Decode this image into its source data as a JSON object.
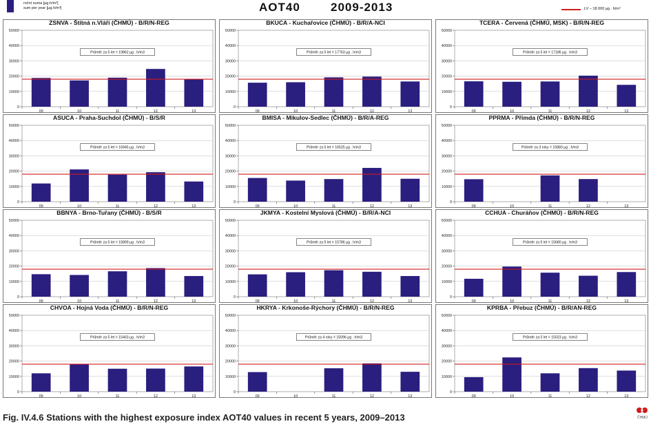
{
  "header": {
    "legend_line1": "roční suma [µg.h/m³]",
    "legend_line2": "sum per year [µg.h/m³]",
    "title": "AOT40",
    "period": "2009-2013",
    "lv_label": "LV – 18 000 µg . h/m³"
  },
  "caption": "Fig. IV.4.6  Stations with the highest exposure index AOT40 values in recent 5 years, 2009–2013",
  "logo_text": "ČHMÚ",
  "colors": {
    "bar": "#2a1e7f",
    "limit_line": "#d01c1c",
    "grid": "#bdbdbd"
  },
  "chart_data": [
    {
      "type": "bar",
      "title": "ZSNVA - Štítná n.Vláří (ČHMÚ) - B/R/N-REG",
      "categories": [
        "09",
        "10",
        "11",
        "12",
        "13"
      ],
      "values": [
        18800,
        17200,
        19000,
        24700,
        17900
      ],
      "ylim": [
        0,
        50000
      ],
      "yticks": [
        "0",
        "10000",
        "20000",
        "30000",
        "40000",
        "50000"
      ],
      "limit": 18000,
      "note": "Průměr za 5 let = 19862 µg . h/m3"
    },
    {
      "type": "bar",
      "title": "BKUCA - Kuchařovice (ČHMÚ) - B/R/A-NCI",
      "categories": [
        "09",
        "10",
        "11",
        "12",
        "13"
      ],
      "values": [
        15700,
        16000,
        19200,
        19700,
        16500
      ],
      "ylim": [
        0,
        50000
      ],
      "yticks": [
        "0",
        "10000",
        "20000",
        "30000",
        "40000",
        "50000"
      ],
      "limit": 18000,
      "note": "Průměr za 5 let = 17763 µg . h/m3"
    },
    {
      "type": "bar",
      "title": "TCERA - Červená (ČHMÚ, MSK) - B/R/N-REG",
      "categories": [
        "09",
        "10",
        "11",
        "12",
        "13"
      ],
      "values": [
        16600,
        16300,
        16500,
        20300,
        14300
      ],
      "ylim": [
        0,
        50000
      ],
      "yticks": [
        "0",
        "10000",
        "20000",
        "30000",
        "40000",
        "50000"
      ],
      "limit": 18000,
      "note": "Průměr za 5 let = 17186 µg . h/m3"
    },
    {
      "type": "bar",
      "title": "ASUCA - Praha-Suchdol (ČHMÚ) - B/S/R",
      "categories": [
        "09",
        "10",
        "11",
        "12",
        "13"
      ],
      "values": [
        11900,
        21100,
        17700,
        19300,
        13200
      ],
      "ylim": [
        0,
        50000
      ],
      "yticks": [
        "0",
        "10000",
        "20000",
        "30000",
        "40000",
        "50000"
      ],
      "limit": 18000,
      "note": "Průměr za 5 let = 16945 µg . h/m3"
    },
    {
      "type": "bar",
      "title": "BMISA - Mikulov-Sedlec (ČHMÚ) - B/R/A-REG",
      "categories": [
        "09",
        "10",
        "11",
        "12",
        "13"
      ],
      "values": [
        15500,
        13800,
        14800,
        22100,
        15000
      ],
      "ylim": [
        0,
        50000
      ],
      "yticks": [
        "0",
        "10000",
        "20000",
        "30000",
        "40000",
        "50000"
      ],
      "limit": 18000,
      "note": "Průměr za 5 let = 16525 µg . h/m3"
    },
    {
      "type": "bar",
      "title": "PPRMA - Přimda (ČHMÚ) - B/R/N-REG",
      "categories": [
        "09",
        "10",
        "11",
        "12",
        "13"
      ],
      "values": [
        14700,
        null,
        17200,
        14800,
        null
      ],
      "ylim": [
        0,
        50000
      ],
      "yticks": [
        "0",
        "10000",
        "20000",
        "30000",
        "40000",
        "50000"
      ],
      "limit": 18000,
      "note": "Průměr za 3 roky = 15883 µg . h/m3"
    },
    {
      "type": "bar",
      "title": "BBNYA - Brno-Tuřany (ČHMÚ) - B/S/R",
      "categories": [
        "09",
        "10",
        "11",
        "12",
        "13"
      ],
      "values": [
        14700,
        14200,
        16600,
        18700,
        13500
      ],
      "ylim": [
        0,
        50000
      ],
      "yticks": [
        "0",
        "10000",
        "20000",
        "30000",
        "40000",
        "50000"
      ],
      "limit": 18000,
      "note": "Průměr za 5 let = 15809 µg . h/m3"
    },
    {
      "type": "bar",
      "title": "JKMYA - Kostelní Myslová (ČHMÚ) - B/R/A-NCI",
      "categories": [
        "09",
        "10",
        "11",
        "12",
        "13"
      ],
      "values": [
        14600,
        16000,
        17300,
        16300,
        13500
      ],
      "ylim": [
        0,
        50000
      ],
      "yticks": [
        "0",
        "10000",
        "20000",
        "30000",
        "40000",
        "50000"
      ],
      "limit": 18000,
      "note": "Průměr za 5 let = 15786 µg . h/m3"
    },
    {
      "type": "bar",
      "title": "CCHUA - Churáňov (ČHMÚ) - B/R/N-REG",
      "categories": [
        "09",
        "10",
        "11",
        "12",
        "13"
      ],
      "values": [
        11700,
        19700,
        15700,
        13700,
        16100
      ],
      "ylim": [
        0,
        50000
      ],
      "yticks": [
        "0",
        "10000",
        "20000",
        "30000",
        "40000",
        "50000"
      ],
      "limit": 18000,
      "note": "Průměr za 5 let = 15680 µg . h/m3"
    },
    {
      "type": "bar",
      "title": "CHVOA - Hojná Voda (ČHMÚ) - B/R/N-REG",
      "categories": [
        "09",
        "10",
        "11",
        "12",
        "13"
      ],
      "values": [
        12000,
        18100,
        15000,
        15100,
        16500
      ],
      "ylim": [
        0,
        50000
      ],
      "yticks": [
        "0",
        "10000",
        "20000",
        "30000",
        "40000",
        "50000"
      ],
      "limit": 18000,
      "note": "Průměr za 5 let = 15463 µg . h/m3"
    },
    {
      "type": "bar",
      "title": "HKRYA - Krkonoše-Rýchory (ČHMÚ) - B/R/N-REG",
      "categories": [
        "09",
        "10",
        "11",
        "12",
        "13"
      ],
      "values": [
        12800,
        null,
        15300,
        18500,
        13000
      ],
      "ylim": [
        0,
        50000
      ],
      "yticks": [
        "0",
        "10000",
        "20000",
        "30000",
        "40000",
        "50000"
      ],
      "limit": 18000,
      "note": "Průměr za 4 roky = 15096 µg . h/m3"
    },
    {
      "type": "bar",
      "title": "KPRBA - Přebuz (ČHMÚ) - B/R/AN-REG",
      "categories": [
        "09",
        "10",
        "11",
        "12",
        "13"
      ],
      "values": [
        9500,
        22400,
        12000,
        15400,
        13800
      ],
      "ylim": [
        0,
        50000
      ],
      "yticks": [
        "0",
        "10000",
        "20000",
        "30000",
        "40000",
        "50000"
      ],
      "limit": 18000,
      "note": "Průměr za 5 let = 15023 µg . h/m3"
    }
  ]
}
